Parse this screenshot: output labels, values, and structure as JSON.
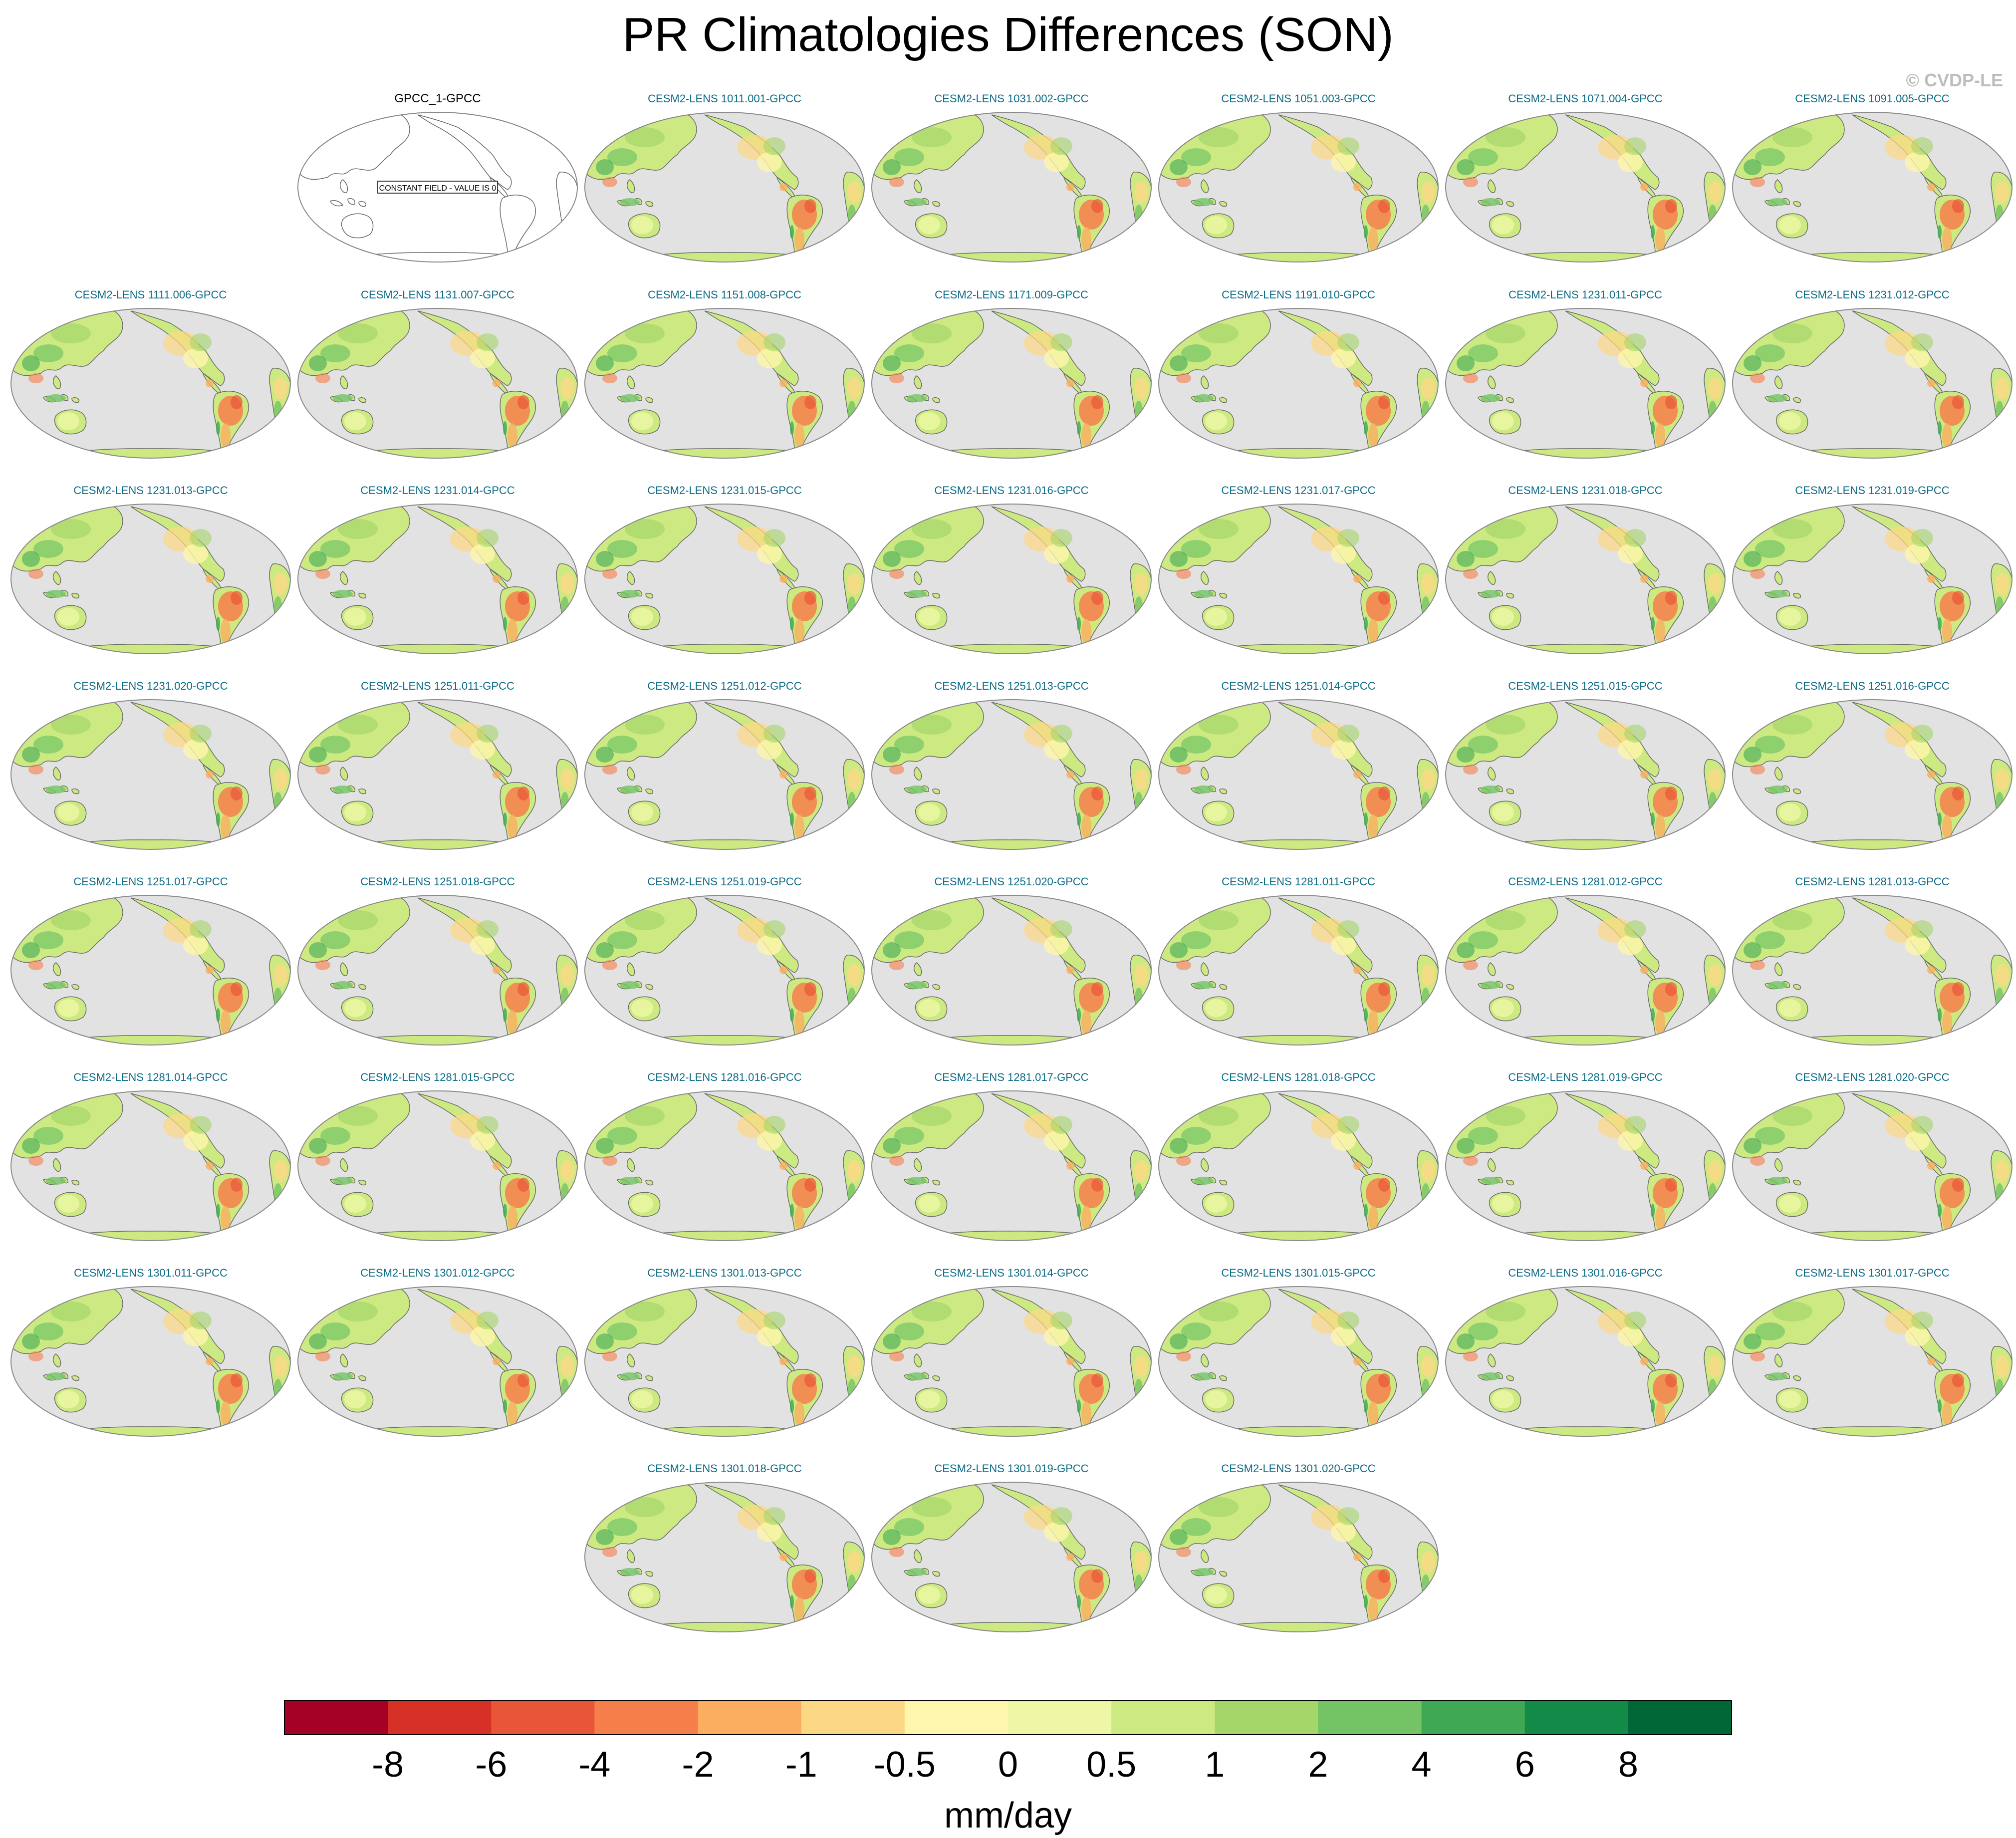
{
  "figure": {
    "title": "PR Climatologies Differences (SON)",
    "copyright": "© CVDP-LE"
  },
  "panels": [
    {
      "label": "GPCC_1-GPCC",
      "constant": true,
      "note": "CONSTANT FIELD - VALUE IS 0"
    },
    {
      "label": "CESM2-LENS 1011.001-GPCC"
    },
    {
      "label": "CESM2-LENS 1031.002-GPCC"
    },
    {
      "label": "CESM2-LENS 1051.003-GPCC"
    },
    {
      "label": "CESM2-LENS 1071.004-GPCC"
    },
    {
      "label": "CESM2-LENS 1091.005-GPCC"
    },
    {
      "label": "CESM2-LENS 1111.006-GPCC"
    },
    {
      "label": "CESM2-LENS 1131.007-GPCC"
    },
    {
      "label": "CESM2-LENS 1151.008-GPCC"
    },
    {
      "label": "CESM2-LENS 1171.009-GPCC"
    },
    {
      "label": "CESM2-LENS 1191.010-GPCC"
    },
    {
      "label": "CESM2-LENS 1231.011-GPCC"
    },
    {
      "label": "CESM2-LENS 1231.012-GPCC"
    },
    {
      "label": "CESM2-LENS 1231.013-GPCC"
    },
    {
      "label": "CESM2-LENS 1231.014-GPCC"
    },
    {
      "label": "CESM2-LENS 1231.015-GPCC"
    },
    {
      "label": "CESM2-LENS 1231.016-GPCC"
    },
    {
      "label": "CESM2-LENS 1231.017-GPCC"
    },
    {
      "label": "CESM2-LENS 1231.018-GPCC"
    },
    {
      "label": "CESM2-LENS 1231.019-GPCC"
    },
    {
      "label": "CESM2-LENS 1231.020-GPCC"
    },
    {
      "label": "CESM2-LENS 1251.011-GPCC"
    },
    {
      "label": "CESM2-LENS 1251.012-GPCC"
    },
    {
      "label": "CESM2-LENS 1251.013-GPCC"
    },
    {
      "label": "CESM2-LENS 1251.014-GPCC"
    },
    {
      "label": "CESM2-LENS 1251.015-GPCC"
    },
    {
      "label": "CESM2-LENS 1251.016-GPCC"
    },
    {
      "label": "CESM2-LENS 1251.017-GPCC"
    },
    {
      "label": "CESM2-LENS 1251.018-GPCC"
    },
    {
      "label": "CESM2-LENS 1251.019-GPCC"
    },
    {
      "label": "CESM2-LENS 1251.020-GPCC"
    },
    {
      "label": "CESM2-LENS 1281.011-GPCC"
    },
    {
      "label": "CESM2-LENS 1281.012-GPCC"
    },
    {
      "label": "CESM2-LENS 1281.013-GPCC"
    },
    {
      "label": "CESM2-LENS 1281.014-GPCC"
    },
    {
      "label": "CESM2-LENS 1281.015-GPCC"
    },
    {
      "label": "CESM2-LENS 1281.016-GPCC"
    },
    {
      "label": "CESM2-LENS 1281.017-GPCC"
    },
    {
      "label": "CESM2-LENS 1281.018-GPCC"
    },
    {
      "label": "CESM2-LENS 1281.019-GPCC"
    },
    {
      "label": "CESM2-LENS 1281.020-GPCC"
    },
    {
      "label": "CESM2-LENS 1301.011-GPCC"
    },
    {
      "label": "CESM2-LENS 1301.012-GPCC"
    },
    {
      "label": "CESM2-LENS 1301.013-GPCC"
    },
    {
      "label": "CESM2-LENS 1301.014-GPCC"
    },
    {
      "label": "CESM2-LENS 1301.015-GPCC"
    },
    {
      "label": "CESM2-LENS 1301.016-GPCC"
    },
    {
      "label": "CESM2-LENS 1301.017-GPCC"
    },
    {
      "label": "CESM2-LENS 1301.018-GPCC"
    },
    {
      "label": "CESM2-LENS 1301.019-GPCC"
    },
    {
      "label": "CESM2-LENS 1301.020-GPCC"
    }
  ],
  "colorbar": {
    "unit_label": "mm/day",
    "tick_labels": [
      "-8",
      "-6",
      "-4",
      "-2",
      "-1",
      "-0.5",
      "0",
      "0.5",
      "1",
      "2",
      "4",
      "6",
      "8"
    ],
    "colors": [
      "#a50026",
      "#d73027",
      "#e95538",
      "#f67e4b",
      "#fbad60",
      "#fdd884",
      "#fef6ad",
      "#eef7a6",
      "#cde982",
      "#a5d66a",
      "#74c465",
      "#3fa855",
      "#138a48",
      "#006837"
    ]
  },
  "map_colors": {
    "ocean": "#e2e2e2",
    "coast": "#6b6b6b",
    "panel_label": "#0b6a85",
    "constant_label": "#000000"
  }
}
